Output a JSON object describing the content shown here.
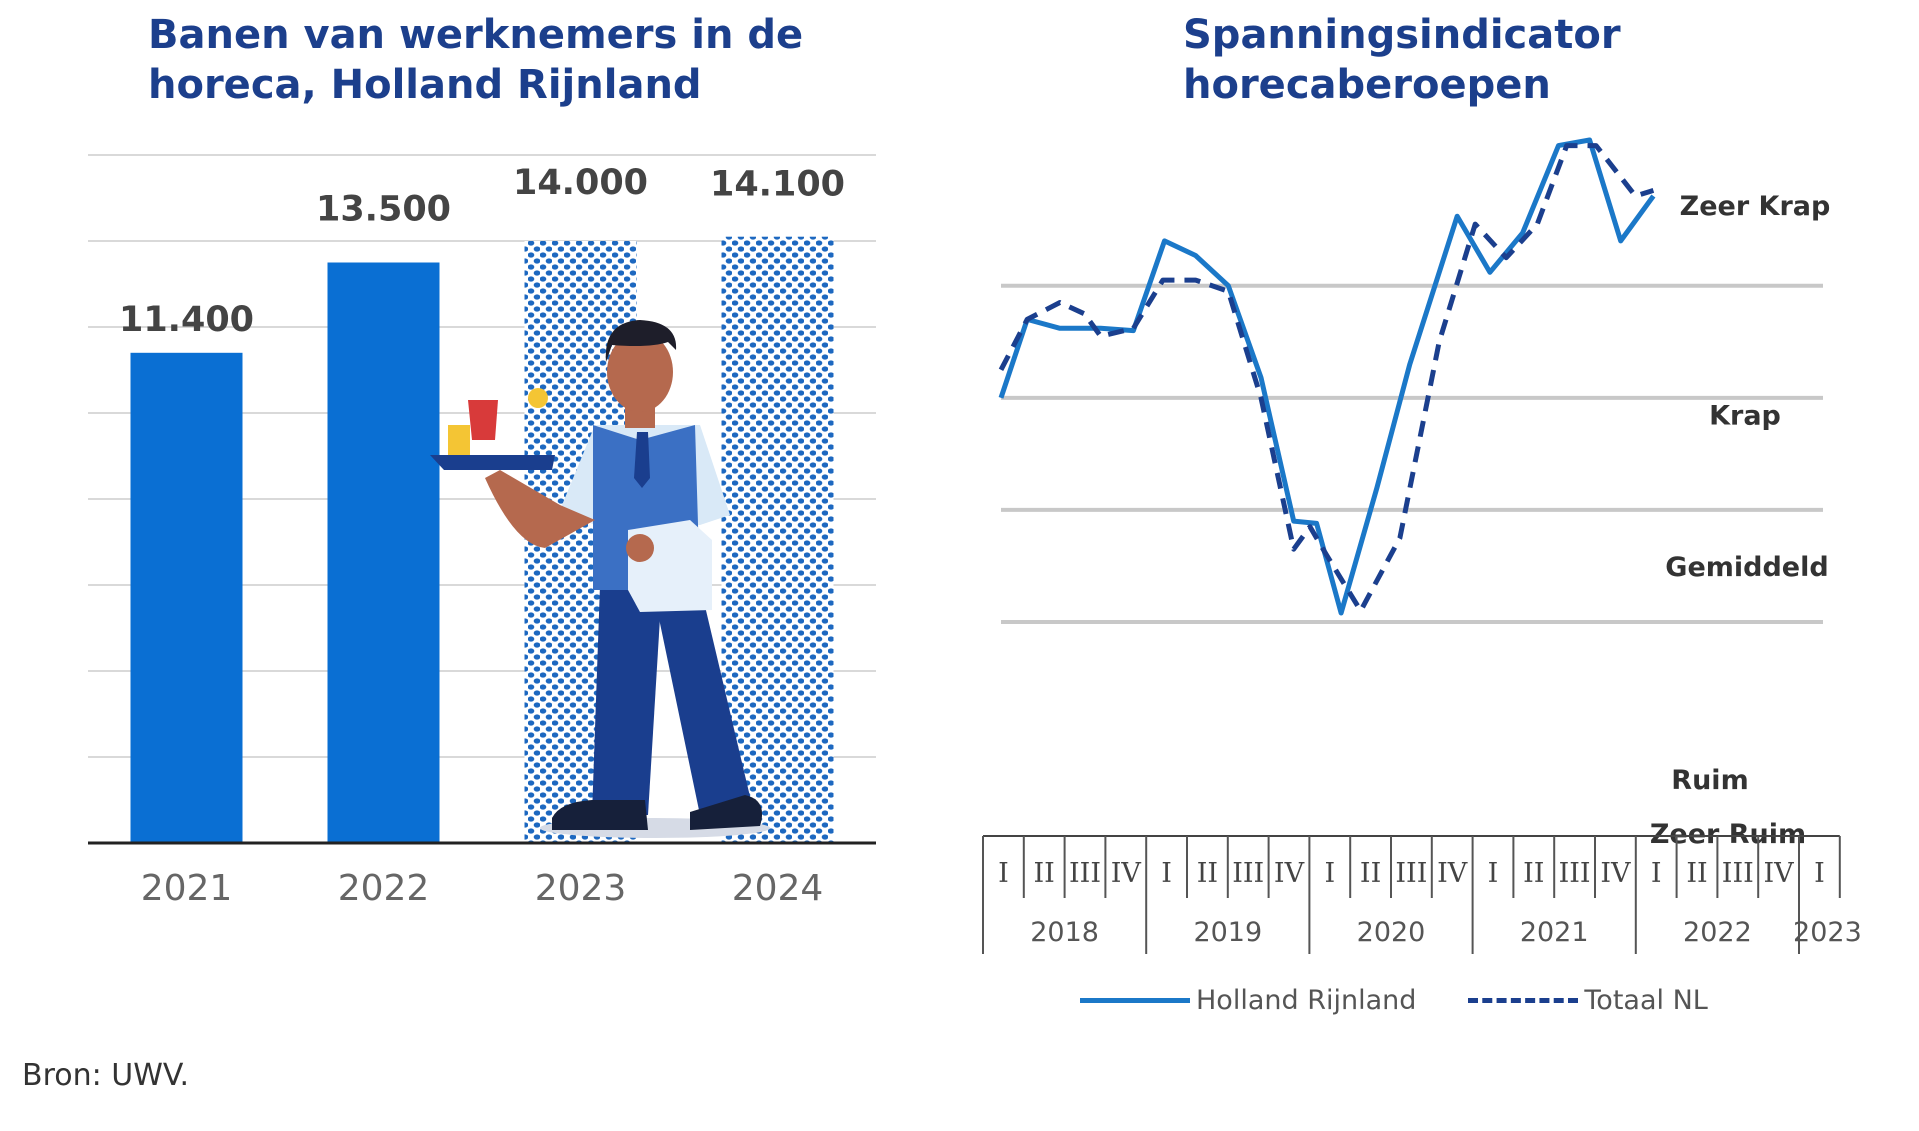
{
  "colors": {
    "title": "#1c3f8c",
    "bar": "#0a6fd3",
    "line_region": "#1b78c8",
    "line_nl": "#1b3f8e",
    "grid": "#c8c8c8",
    "pattern_dot": "#1d68c0"
  },
  "chart_data": [
    {
      "type": "bar",
      "title": "Banen van werknemers in de horeca, Holland Rijnland",
      "categories": [
        "2021",
        "2022",
        "2023",
        "2024"
      ],
      "values": [
        11400,
        13500,
        14000,
        14100
      ],
      "value_labels": [
        "11.400",
        "13.500",
        "14.000",
        "14.100"
      ],
      "forecast": [
        false,
        false,
        true,
        true
      ],
      "ylim": [
        0,
        16000
      ],
      "grid": true
    },
    {
      "type": "line",
      "title": "Spanningsindicator horecaberoepen",
      "x_quarters": [
        "I",
        "II",
        "III",
        "IV",
        "I",
        "II",
        "III",
        "IV",
        "I",
        "II",
        "III",
        "IV",
        "I",
        "II",
        "III",
        "IV",
        "I",
        "II",
        "III",
        "IV",
        "I"
      ],
      "x_years": [
        "2018",
        "2019",
        "2020",
        "2021",
        "2022",
        "2023"
      ],
      "ylim": [
        -0.9,
        5.3
      ],
      "zones": [
        "Zeer Krap",
        "Krap",
        "Gemiddeld",
        "Ruim",
        "Zeer Ruim"
      ],
      "zone_boundaries": [
        1,
        2,
        3,
        4
      ],
      "series": [
        {
          "name": "Holland Rijnland",
          "style": "solid",
          "x": [
            0.0,
            0.8,
            1.8,
            3.05,
            4.05,
            5.0,
            5.95,
            6.95,
            7.95,
            8.95,
            9.65,
            10.4,
            11.5,
            12.5,
            13.95,
            14.95,
            15.95,
            17.05,
            18.0,
            18.95,
            19.95
          ],
          "y": [
            3.0,
            3.7,
            3.62,
            3.62,
            3.6,
            4.4,
            4.27,
            4.0,
            3.18,
            1.9,
            1.88,
            1.08,
            2.2,
            3.3,
            4.62,
            4.12,
            4.47,
            5.25,
            5.3,
            4.4,
            4.8
          ]
        },
        {
          "name": "Totaal NL",
          "style": "dashed",
          "x": [
            0.0,
            0.8,
            1.8,
            2.55,
            3.05,
            4.05,
            4.95,
            5.95,
            6.95,
            7.95,
            8.95,
            9.45,
            9.95,
            11.0,
            12.2,
            13.4,
            14.5,
            15.45,
            16.4,
            17.3,
            18.2,
            19.4,
            19.95
          ],
          "y": [
            3.25,
            3.7,
            3.85,
            3.75,
            3.55,
            3.62,
            4.05,
            4.05,
            3.95,
            3.0,
            1.65,
            1.85,
            1.6,
            1.1,
            1.75,
            3.5,
            4.55,
            4.25,
            4.55,
            5.25,
            5.25,
            4.8,
            4.85
          ]
        }
      ]
    }
  ],
  "source": "Bron: UWV."
}
